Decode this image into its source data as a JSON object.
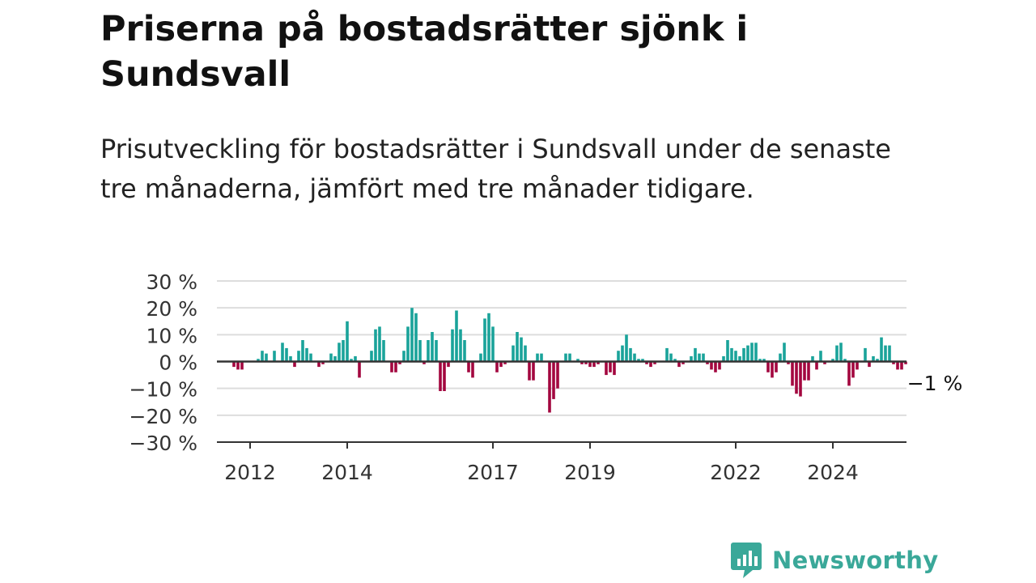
{
  "header": {
    "title": "Priserna på bostadsrätter sjönk i Sundsvall",
    "subtitle": "Prisutveckling för bostadsrätter i Sundsvall under de senaste tre månaderna, jämfört med tre månader tidigare."
  },
  "brand": {
    "name": "Newsworthy"
  },
  "colors": {
    "positive": "#1aa39a",
    "negative": "#a3073f",
    "grid": "#dddddd",
    "axis": "#333333",
    "brand": "#3aa899"
  },
  "chart_data": {
    "type": "bar",
    "x_start": "2011-10",
    "x_interval": "month",
    "ylim": [
      -30,
      30
    ],
    "y_ticks": [
      30,
      20,
      10,
      0,
      -10,
      -20,
      -30
    ],
    "y_tick_labels": [
      "30 %",
      "20 %",
      "10 %",
      "0 %",
      "−10 %",
      "−20 %",
      "−30 %"
    ],
    "x_tick_labels": [
      "2012",
      "2014",
      "2017",
      "2019",
      "2022",
      "2024"
    ],
    "x_tick_dates": [
      "2012-01",
      "2014-01",
      "2017-01",
      "2019-01",
      "2022-01",
      "2024-01"
    ],
    "last_value_label": "−1 %",
    "values": [
      -2,
      -3,
      -3,
      0,
      0,
      0,
      1,
      4,
      3,
      0,
      4,
      0,
      7,
      5,
      2,
      -2,
      4,
      8,
      5,
      3,
      0,
      -2,
      -1,
      0,
      3,
      2,
      7,
      8,
      15,
      1,
      2,
      -6,
      0,
      0,
      4,
      12,
      13,
      8,
      0,
      -4,
      -4,
      -1,
      4,
      13,
      20,
      18,
      8,
      -1,
      8,
      11,
      8,
      -11,
      -11,
      -2,
      12,
      19,
      12,
      8,
      -4,
      -6,
      0,
      3,
      16,
      18,
      13,
      -4,
      -2,
      -1,
      0,
      6,
      11,
      9,
      6,
      -7,
      -7,
      3,
      3,
      0,
      -19,
      -14,
      -10,
      0,
      3,
      3,
      0,
      1,
      -1,
      -1,
      -2,
      -2,
      -1,
      0,
      -5,
      -4,
      -5,
      4,
      6,
      10,
      5,
      3,
      1,
      1,
      -1,
      -2,
      -1,
      0,
      0,
      5,
      3,
      1,
      -2,
      -1,
      0,
      2,
      5,
      3,
      3,
      -1,
      -3,
      -4,
      -3,
      2,
      8,
      5,
      4,
      2,
      5,
      6,
      7,
      7,
      1,
      1,
      -4,
      -6,
      -4,
      3,
      7,
      -1,
      -9,
      -12,
      -13,
      -7,
      -7,
      2,
      -3,
      4,
      -1,
      0,
      1,
      6,
      7,
      1,
      -9,
      -6,
      -3,
      0,
      5,
      -2,
      2,
      1,
      9,
      6,
      6,
      -1,
      -3,
      -3,
      -1
    ]
  }
}
